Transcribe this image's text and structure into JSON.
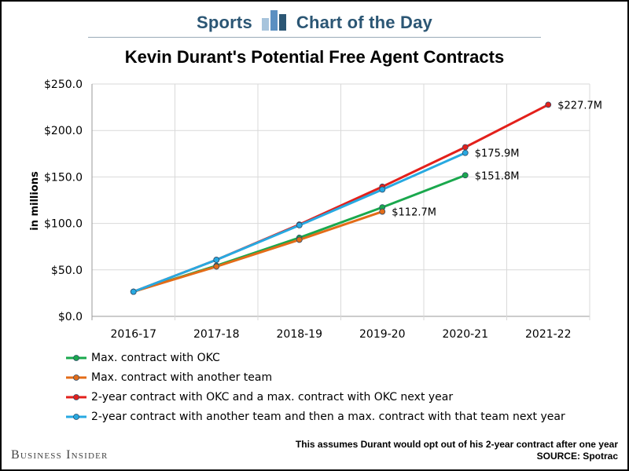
{
  "header": {
    "left_text": "Sports",
    "right_text": "Chart of the Day"
  },
  "footer": {
    "brand": "Business Insider",
    "note": "This assumes Durant would opt out of his 2-year contract after one year",
    "source": "SOURCE: Spotrac"
  },
  "colors": {
    "header_text": "#2b5674",
    "grid": "#d9d9d9",
    "okc_max": "#1aa84d",
    "other_max": "#e36c18",
    "okc_2yr": "#e3201b",
    "other_2yr": "#27a9e1"
  },
  "chart_data": {
    "type": "line",
    "title": "Kevin Durant's Potential Free Agent Contracts",
    "xlabel": "",
    "ylabel": "in millions",
    "categories": [
      "2016-17",
      "2017-18",
      "2018-19",
      "2019-20",
      "2020-21",
      "2021-22"
    ],
    "ylim": [
      0,
      250
    ],
    "yticks": [
      0,
      50,
      100,
      150,
      200,
      250
    ],
    "ytick_labels": [
      "$0.0",
      "$50.0",
      "$100.0",
      "$150.0",
      "$200.0",
      "$250.0"
    ],
    "grid": true,
    "legend_position": "bottom",
    "series": [
      {
        "name": "Max. contract with OKC",
        "color": "#1aa84d",
        "values": [
          26.5,
          54.5,
          84.6,
          117.3,
          151.8,
          null
        ],
        "end_label": "$151.8M"
      },
      {
        "name": "Max. contract with another team",
        "color": "#e36c18",
        "values": [
          26.5,
          53.6,
          82.4,
          112.7,
          null,
          null
        ],
        "end_label": "$112.7M"
      },
      {
        "name": "2-year contract with OKC and a max. contract with OKC next year",
        "color": "#e3201b",
        "values": [
          26.5,
          60.8,
          98.8,
          139.5,
          182.0,
          227.7
        ],
        "end_label": "$227.7M"
      },
      {
        "name": "2-year contract with another team and then a max. contract with that team next year",
        "color": "#27a9e1",
        "values": [
          26.5,
          60.8,
          98.0,
          136.4,
          175.9,
          null
        ],
        "end_label": "$175.9M"
      }
    ]
  }
}
